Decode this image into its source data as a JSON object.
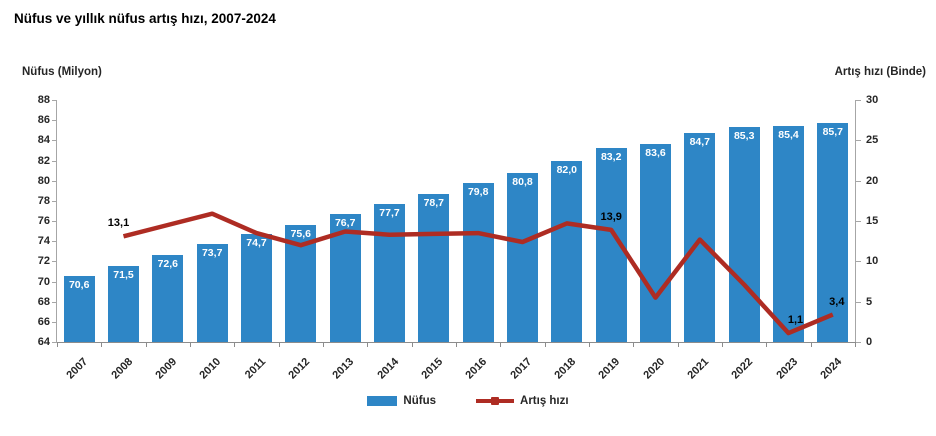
{
  "title": "Nüfus ve yıllık nüfus artış hızı, 2007-2024",
  "left_axis_title": "Nüfus (Milyon)",
  "right_axis_title": "Artış hızı (Binde)",
  "legend": {
    "bar_label": "Nüfus",
    "line_label": "Artış hızı"
  },
  "colors": {
    "bar": "#2E86C6",
    "line": "#AE2C23",
    "axis": "#a6a6a6",
    "x_axis": "#8c8c8c",
    "text": "#262626",
    "bar_label_text": "#ffffff",
    "line_label_text": "#000000"
  },
  "chart_data": {
    "type": "bar",
    "subtype": "bar-line-combo",
    "title": "Nüfus ve yıllık nüfus artış hızı, 2007-2024",
    "categories": [
      "2007",
      "2008",
      "2009",
      "2010",
      "2011",
      "2012",
      "2013",
      "2014",
      "2015",
      "2016",
      "2017",
      "2018",
      "2019",
      "2020",
      "2021",
      "2022",
      "2023",
      "2024"
    ],
    "series": [
      {
        "name": "Nüfus",
        "type": "bar",
        "axis": "left",
        "values": [
          70.6,
          71.5,
          72.6,
          73.7,
          74.7,
          75.6,
          76.7,
          77.7,
          78.7,
          79.8,
          80.8,
          82.0,
          83.2,
          83.6,
          84.7,
          85.3,
          85.4,
          85.7
        ],
        "data_labels": [
          "70,6",
          "71,5",
          "72,6",
          "73,7",
          "74,7",
          "75,6",
          "76,7",
          "77,7",
          "78,7",
          "79,8",
          "80,8",
          "82,0",
          "83,2",
          "83,6",
          "84,7",
          "85,3",
          "85,4",
          "85,7"
        ]
      },
      {
        "name": "Artış hızı",
        "type": "line",
        "axis": "right",
        "values": [
          null,
          13.1,
          14.5,
          15.9,
          13.5,
          12.0,
          13.7,
          13.3,
          13.4,
          13.5,
          12.4,
          14.7,
          13.9,
          5.5,
          12.7,
          7.1,
          1.1,
          3.4
        ],
        "data_labels": [
          null,
          "13,1",
          null,
          null,
          null,
          null,
          null,
          null,
          null,
          null,
          null,
          null,
          "13,9",
          null,
          null,
          null,
          "1,1",
          "3,4"
        ]
      }
    ],
    "left_axis": {
      "label": "Nüfus (Milyon)",
      "min": 64,
      "max": 88,
      "step": 2
    },
    "right_axis": {
      "label": "Artış hızı (Binde)",
      "min": 0,
      "max": 30,
      "step": 5
    },
    "gridlines": false,
    "legend_position": "bottom",
    "xlabel": "",
    "ylabel": "Nüfus (Milyon)",
    "y2label": "Artış hızı (Binde)"
  }
}
